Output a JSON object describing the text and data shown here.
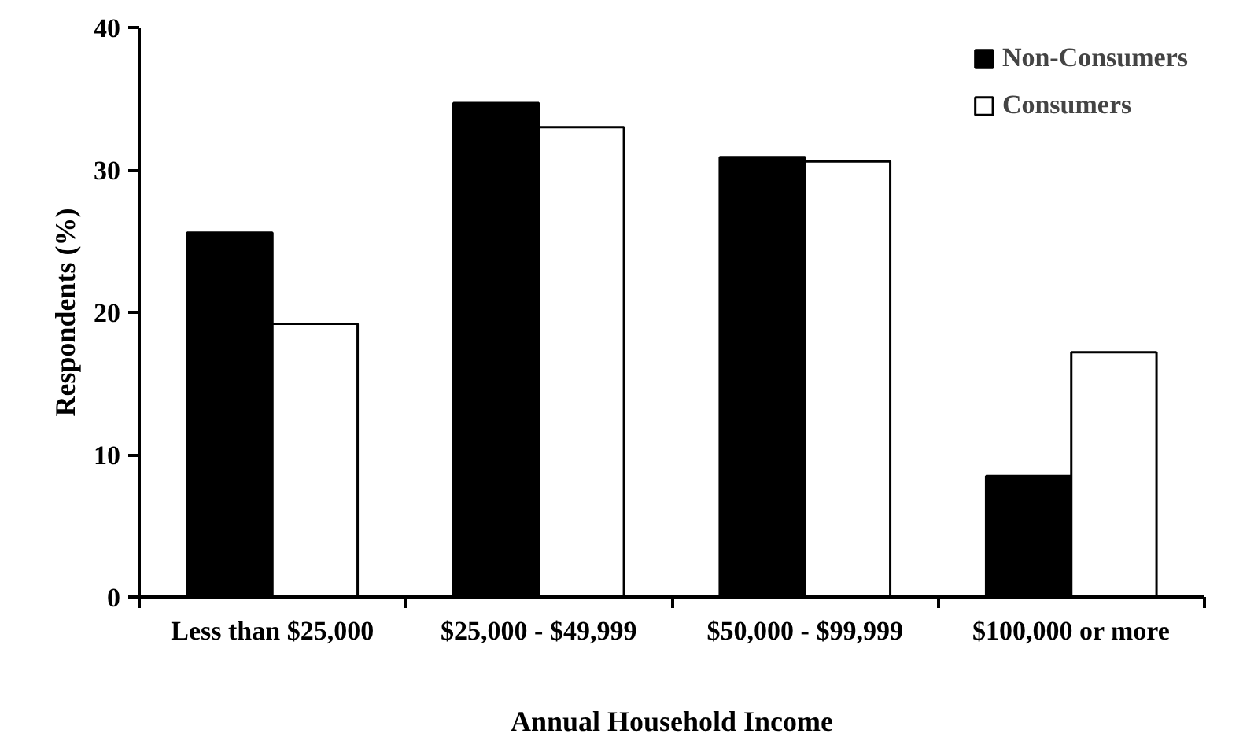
{
  "chart_data": {
    "type": "bar",
    "xlabel": "Annual Household Income",
    "ylabel": "Respondents (%)",
    "categories": [
      "Less than $25,000",
      "$25,000 - $49,999",
      "$50,000 - $99,999",
      "$100,000 or more"
    ],
    "series": [
      {
        "name": "Non-Consumers",
        "color": "#000000",
        "values": [
          25.6,
          34.7,
          30.9,
          8.5
        ]
      },
      {
        "name": "Consumers",
        "color": "#ffffff",
        "values": [
          19.2,
          33.0,
          30.6,
          17.2
        ]
      }
    ],
    "ylim": [
      0,
      40
    ],
    "yticks": [
      0,
      10,
      20,
      30,
      40
    ],
    "grid": false,
    "legend": "top right"
  }
}
